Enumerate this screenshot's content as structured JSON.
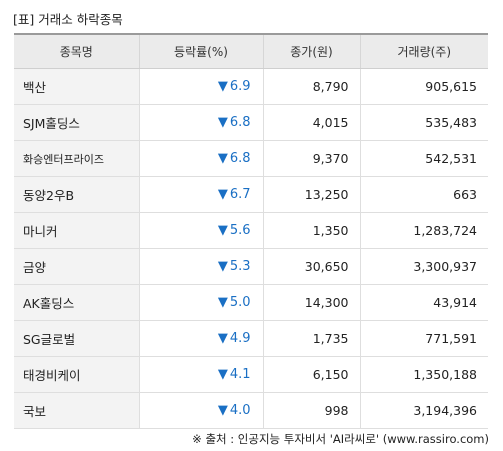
{
  "title": "[표] 거래소 하락종목",
  "headers": [
    "종목명",
    "등락률(%)",
    "종가(원)",
    "거래량(주)"
  ],
  "arrow": "▼",
  "rows": [
    {
      "name": "백산",
      "rate": "6.9",
      "price": "8,790",
      "volume": "905,615"
    },
    {
      "name": "SJM홀딩스",
      "rate": "6.8",
      "price": "4,015",
      "volume": "535,483"
    },
    {
      "name": "화승엔터프라이즈",
      "rate": "6.8",
      "price": "9,370",
      "volume": "542,531"
    },
    {
      "name": "동양2우B",
      "rate": "6.7",
      "price": "13,250",
      "volume": "663"
    },
    {
      "name": "마니커",
      "rate": "5.6",
      "price": "1,350",
      "volume": "1,283,724"
    },
    {
      "name": "금양",
      "rate": "5.3",
      "price": "30,650",
      "volume": "3,300,937"
    },
    {
      "name": "AK홀딩스",
      "rate": "5.0",
      "price": "14,300",
      "volume": "43,914"
    },
    {
      "name": "SG글로벌",
      "rate": "4.9",
      "price": "1,735",
      "volume": "771,591"
    },
    {
      "name": "태경비케이",
      "rate": "4.1",
      "price": "6,150",
      "volume": "1,350,188"
    },
    {
      "name": "국보",
      "rate": "4.0",
      "price": "998",
      "volume": "3,194,396"
    }
  ],
  "source": "※ 출처 : 인공지능 투자비서 'AI라씨로' (www.rassiro.com)",
  "colors": {
    "rate": "#1a6fc4",
    "header_bg": "#ebebeb",
    "name_bg": "#f3f3f3"
  }
}
